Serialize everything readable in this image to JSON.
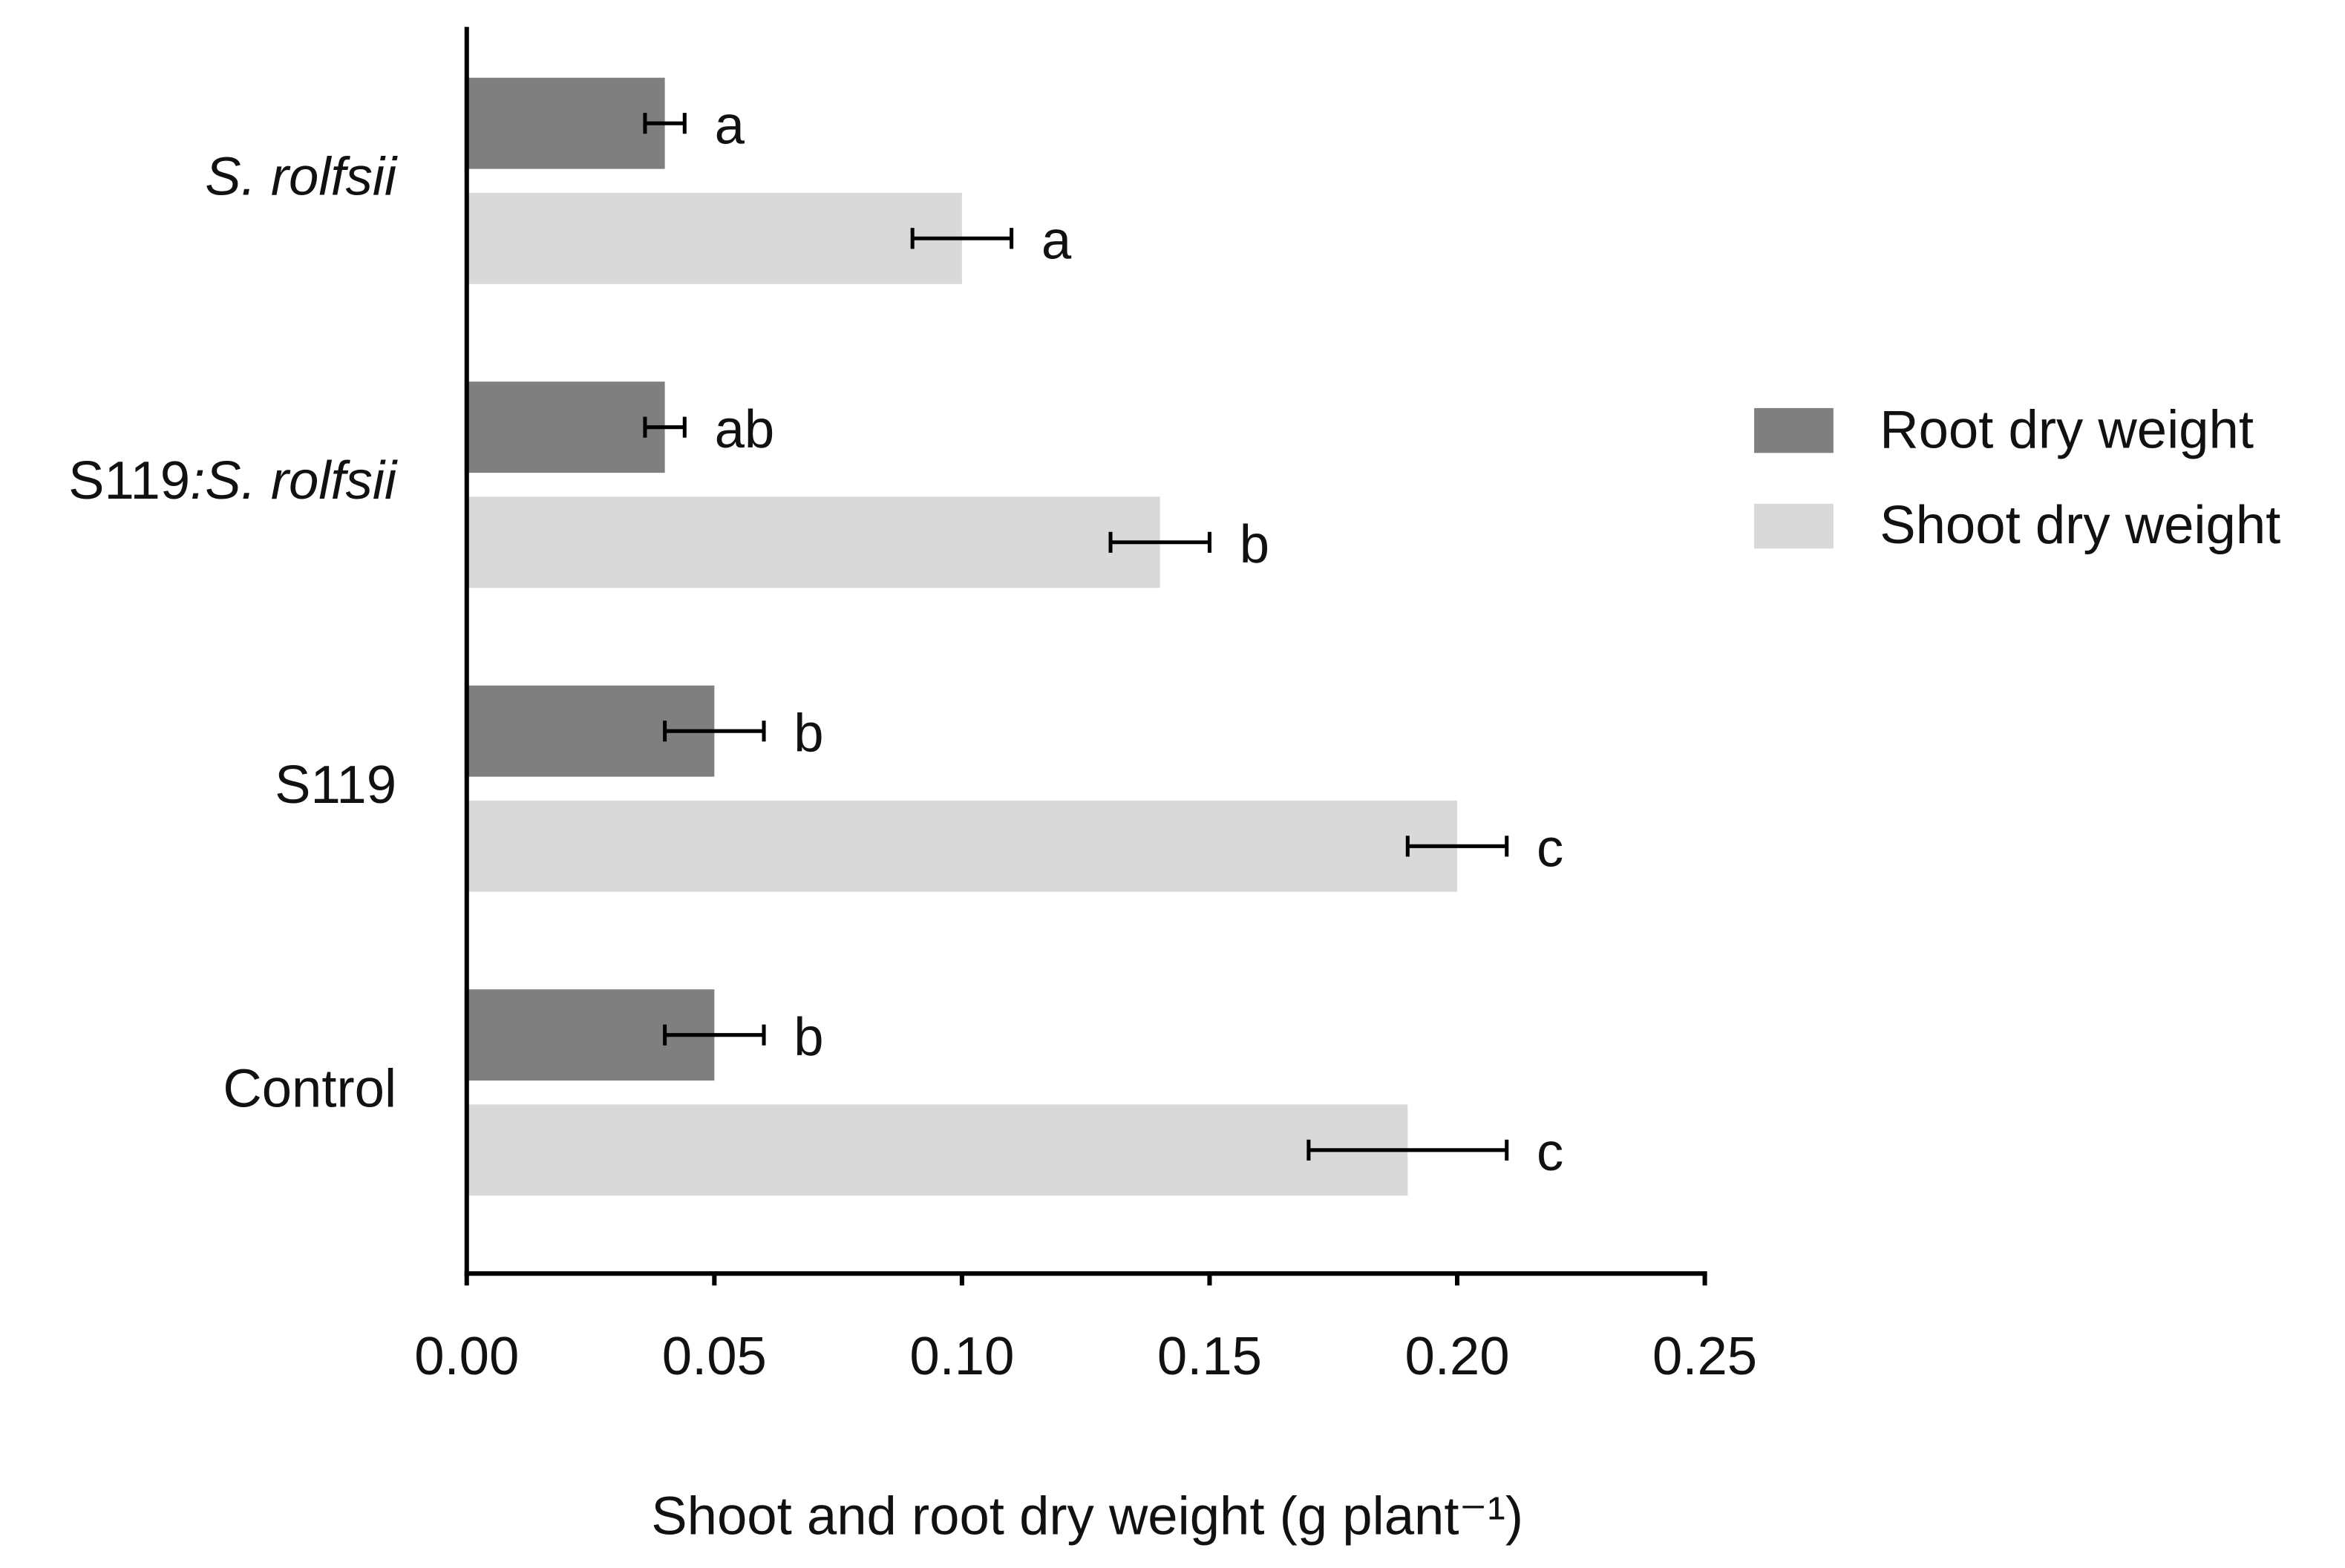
{
  "chart_data": {
    "type": "hbar",
    "categories": [
      "S. rolfsii",
      "S119:S. rolfsii",
      "S119",
      "Control"
    ],
    "series": [
      {
        "name": "Root dry weight",
        "color": "#7f7f7f",
        "values": [
          0.04,
          0.04,
          0.05,
          0.05
        ],
        "errors": [
          0.004,
          0.004,
          0.01,
          0.01
        ],
        "letters": [
          "a",
          "ab",
          "b",
          "b"
        ]
      },
      {
        "name": "Shoot dry weight",
        "color": "#d9d9d9",
        "values": [
          0.1,
          0.14,
          0.2,
          0.19
        ],
        "errors": [
          0.01,
          0.01,
          0.01,
          0.02
        ],
        "letters": [
          "a",
          "b",
          "c",
          "c"
        ]
      }
    ],
    "xlabel": "Shoot and root dry weight (g plant⁻¹)",
    "xlim": [
      0,
      0.25
    ],
    "xticks": [
      {
        "value": 0,
        "label": "0.00"
      },
      {
        "value": 0.05,
        "label": "0.05"
      },
      {
        "value": 0.1,
        "label": "0.10"
      },
      {
        "value": 0.15,
        "label": "0.15"
      },
      {
        "value": 0.2,
        "label": "0.20"
      },
      {
        "value": 0.25,
        "label": "0.25"
      }
    ],
    "legend": "right"
  }
}
